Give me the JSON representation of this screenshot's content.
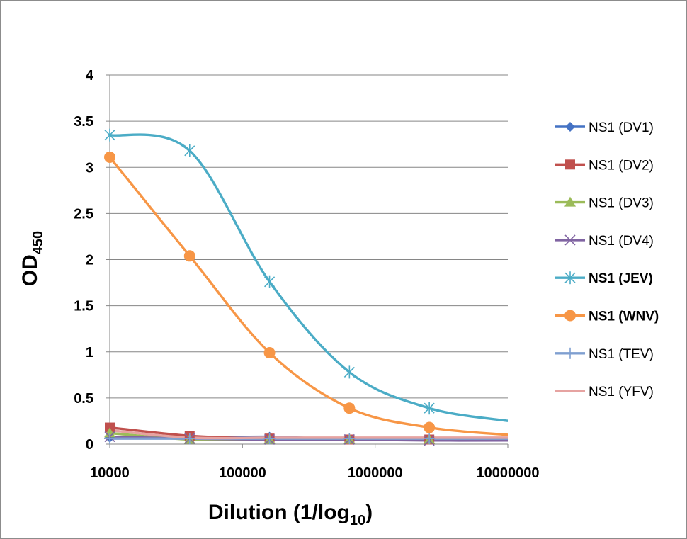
{
  "chart_data": {
    "type": "line",
    "xscale": "log",
    "xlim": [
      10000,
      10000000
    ],
    "ylim": [
      0,
      4
    ],
    "x_ticks": [
      "10000",
      "100000",
      "1000000",
      "10000000"
    ],
    "y_ticks": [
      "0",
      "0.5",
      "1",
      "1.5",
      "2",
      "2.5",
      "3",
      "3.5",
      "4"
    ],
    "xlabel": {
      "main": "Dilution (1/log",
      "sub": "10",
      "end": ")"
    },
    "ylabel": {
      "main": "OD",
      "sub": "450"
    },
    "grid": "horizontal",
    "legend_position": "right",
    "x": [
      10000,
      40000,
      160000,
      640000,
      2560000,
      10240000
    ],
    "series": [
      {
        "name": "NS1 (DV1)",
        "color": "#4472c4",
        "marker": "diamond",
        "bold": false,
        "values": [
          0.07,
          0.07,
          0.08,
          0.05,
          0.05,
          0.05
        ]
      },
      {
        "name": "NS1 (DV2)",
        "color": "#c0504d",
        "marker": "square",
        "bold": false,
        "values": [
          0.18,
          0.09,
          0.06,
          0.05,
          0.05,
          0.05
        ]
      },
      {
        "name": "NS1 (DV3)",
        "color": "#9bbb59",
        "marker": "triangle",
        "bold": false,
        "values": [
          0.12,
          0.05,
          0.05,
          0.05,
          0.05,
          0.05
        ]
      },
      {
        "name": "NS1 (DV4)",
        "color": "#8064a2",
        "marker": "x",
        "bold": false,
        "values": [
          0.08,
          0.06,
          0.05,
          0.05,
          0.04,
          0.04
        ]
      },
      {
        "name": "NS1 (JEV)",
        "color": "#4bacc6",
        "marker": "star",
        "bold": true,
        "values": [
          3.35,
          3.18,
          1.76,
          0.78,
          0.39,
          0.25
        ]
      },
      {
        "name": "NS1 (WNV)",
        "color": "#f79646",
        "marker": "circle",
        "bold": true,
        "values": [
          3.11,
          2.04,
          0.99,
          0.39,
          0.18,
          0.1
        ]
      },
      {
        "name": "NS1 (TEV)",
        "color": "#7f9fd0",
        "marker": "plus",
        "bold": false,
        "values": [
          0.06,
          0.06,
          0.06,
          0.06,
          0.06,
          0.06
        ]
      },
      {
        "name": "NS1 (YFV)",
        "color": "#e6a3a1",
        "marker": "none",
        "bold": false,
        "values": [
          0.15,
          0.07,
          0.07,
          0.07,
          0.07,
          0.07
        ]
      }
    ]
  }
}
